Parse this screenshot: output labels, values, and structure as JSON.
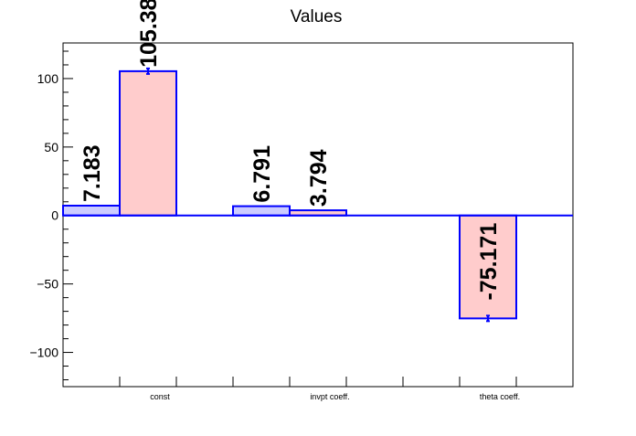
{
  "chart_data": {
    "type": "bar",
    "title": "Values",
    "xlabel": "",
    "ylabel": "",
    "ylim": [
      -125,
      126
    ],
    "yticks": [
      -100,
      -50,
      0,
      50,
      100
    ],
    "ytick_labels": [
      "−100",
      "−50",
      "0",
      "50",
      "100"
    ],
    "categories": [
      "const",
      "invpt coeff.",
      "theta coeff."
    ],
    "series": [
      {
        "values": [
          7.183,
          6.791,
          null
        ],
        "data_labels": [
          "7.183",
          "6.791",
          null
        ],
        "fill": "#ccccff",
        "stroke": "#0000ff"
      },
      {
        "values": [
          105.38,
          3.794,
          -75.171
        ],
        "data_labels": [
          "105.38",
          "3.794",
          "-75.171"
        ],
        "errors": [
          2.0,
          0.0,
          2.0
        ],
        "fill": "#ffcccc",
        "stroke": "#0000ff"
      }
    ],
    "grid": false,
    "legend": "none"
  }
}
